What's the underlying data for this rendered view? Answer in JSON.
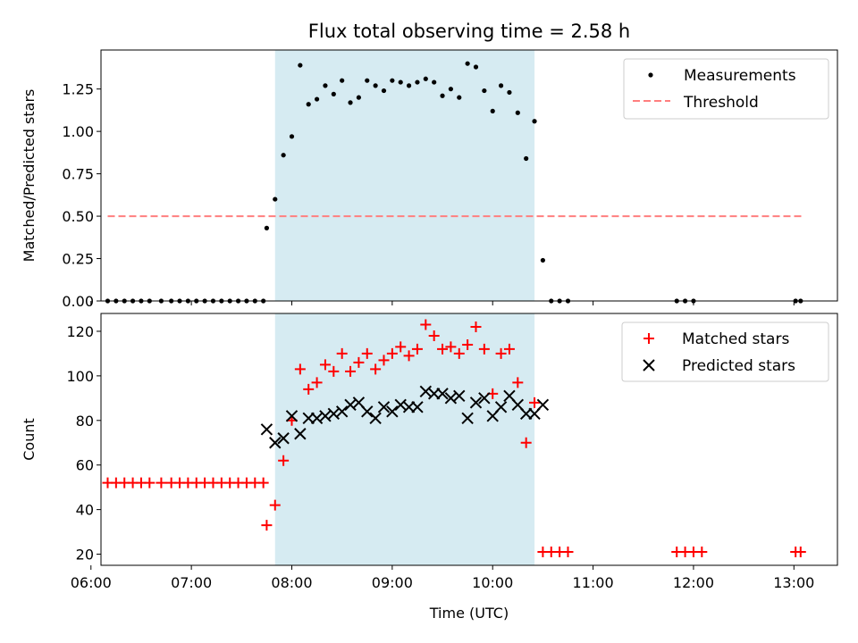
{
  "title": "Flux total observing time = 2.58 h",
  "chart_data": [
    {
      "type": "scatter",
      "ylabel": "Matched/Predicted stars",
      "xlim": [
        "06:06",
        "13:26"
      ],
      "ylim": [
        0,
        1.48
      ],
      "yticks": [
        "0.00",
        "0.25",
        "0.50",
        "0.75",
        "1.00",
        "1.25"
      ],
      "highlight_span": [
        "07:50",
        "10:25"
      ],
      "highlight_color": "#add8e6",
      "legend_position": "top-right",
      "series": [
        {
          "name": "Measurements",
          "marker": "dot",
          "color": "#000000",
          "points": [
            [
              "06:10",
              0
            ],
            [
              "06:15",
              0
            ],
            [
              "06:20",
              0
            ],
            [
              "06:25",
              0
            ],
            [
              "06:30",
              0
            ],
            [
              "06:35",
              0
            ],
            [
              "06:42",
              0
            ],
            [
              "06:48",
              0
            ],
            [
              "06:53",
              0
            ],
            [
              "06:58",
              0
            ],
            [
              "07:03",
              0
            ],
            [
              "07:08",
              0
            ],
            [
              "07:13",
              0
            ],
            [
              "07:18",
              0
            ],
            [
              "07:23",
              0
            ],
            [
              "07:28",
              0
            ],
            [
              "07:33",
              0
            ],
            [
              "07:38",
              0
            ],
            [
              "07:43",
              0
            ],
            [
              "07:45",
              0.43
            ],
            [
              "07:50",
              0.6
            ],
            [
              "07:55",
              0.86
            ],
            [
              "08:00",
              0.97
            ],
            [
              "08:05",
              1.39
            ],
            [
              "08:10",
              1.16
            ],
            [
              "08:15",
              1.19
            ],
            [
              "08:20",
              1.27
            ],
            [
              "08:25",
              1.22
            ],
            [
              "08:30",
              1.3
            ],
            [
              "08:35",
              1.17
            ],
            [
              "08:40",
              1.2
            ],
            [
              "08:45",
              1.3
            ],
            [
              "08:50",
              1.27
            ],
            [
              "08:55",
              1.24
            ],
            [
              "09:00",
              1.3
            ],
            [
              "09:05",
              1.29
            ],
            [
              "09:10",
              1.27
            ],
            [
              "09:15",
              1.29
            ],
            [
              "09:20",
              1.31
            ],
            [
              "09:25",
              1.29
            ],
            [
              "09:30",
              1.21
            ],
            [
              "09:35",
              1.25
            ],
            [
              "09:40",
              1.2
            ],
            [
              "09:45",
              1.4
            ],
            [
              "09:50",
              1.38
            ],
            [
              "09:55",
              1.24
            ],
            [
              "10:00",
              1.12
            ],
            [
              "10:05",
              1.27
            ],
            [
              "10:10",
              1.23
            ],
            [
              "10:15",
              1.11
            ],
            [
              "10:20",
              0.84
            ],
            [
              "10:25",
              1.06
            ],
            [
              "10:30",
              0.24
            ],
            [
              "10:35",
              0
            ],
            [
              "10:40",
              0
            ],
            [
              "10:45",
              0
            ],
            [
              "11:50",
              0
            ],
            [
              "11:55",
              0
            ],
            [
              "12:00",
              0
            ],
            [
              "13:01",
              0
            ],
            [
              "13:04",
              0
            ]
          ]
        },
        {
          "name": "Threshold",
          "type": "line",
          "dashed": true,
          "color": "#ff7f7f",
          "points": [
            [
              "06:10",
              0.5
            ],
            [
              "13:05",
              0.5
            ]
          ]
        }
      ]
    },
    {
      "type": "scatter",
      "xlabel": "Time (UTC)",
      "ylabel": "Count",
      "xlim": [
        "06:06",
        "13:26"
      ],
      "ylim": [
        15,
        128
      ],
      "yticks": [
        "20",
        "40",
        "60",
        "80",
        "100",
        "120"
      ],
      "xticks": [
        "06:00",
        "07:00",
        "08:00",
        "09:00",
        "10:00",
        "11:00",
        "12:00",
        "13:00"
      ],
      "highlight_span": [
        "07:50",
        "10:25"
      ],
      "highlight_color": "#add8e6",
      "legend_position": "top-right",
      "series": [
        {
          "name": "Matched stars",
          "marker": "plus",
          "color": "#ff0000",
          "points": [
            [
              "06:10",
              52
            ],
            [
              "06:15",
              52
            ],
            [
              "06:20",
              52
            ],
            [
              "06:25",
              52
            ],
            [
              "06:30",
              52
            ],
            [
              "06:35",
              52
            ],
            [
              "06:42",
              52
            ],
            [
              "06:48",
              52
            ],
            [
              "06:53",
              52
            ],
            [
              "06:58",
              52
            ],
            [
              "07:03",
              52
            ],
            [
              "07:08",
              52
            ],
            [
              "07:13",
              52
            ],
            [
              "07:18",
              52
            ],
            [
              "07:23",
              52
            ],
            [
              "07:28",
              52
            ],
            [
              "07:33",
              52
            ],
            [
              "07:38",
              52
            ],
            [
              "07:43",
              52
            ],
            [
              "07:45",
              33
            ],
            [
              "07:50",
              42
            ],
            [
              "07:55",
              62
            ],
            [
              "08:00",
              80
            ],
            [
              "08:05",
              103
            ],
            [
              "08:10",
              94
            ],
            [
              "08:15",
              97
            ],
            [
              "08:20",
              105
            ],
            [
              "08:25",
              102
            ],
            [
              "08:30",
              110
            ],
            [
              "08:35",
              102
            ],
            [
              "08:40",
              106
            ],
            [
              "08:45",
              110
            ],
            [
              "08:50",
              103
            ],
            [
              "08:55",
              107
            ],
            [
              "09:00",
              110
            ],
            [
              "09:05",
              113
            ],
            [
              "09:10",
              109
            ],
            [
              "09:15",
              112
            ],
            [
              "09:20",
              123
            ],
            [
              "09:25",
              118
            ],
            [
              "09:30",
              112
            ],
            [
              "09:35",
              113
            ],
            [
              "09:40",
              110
            ],
            [
              "09:45",
              114
            ],
            [
              "09:50",
              122
            ],
            [
              "09:55",
              112
            ],
            [
              "10:00",
              92
            ],
            [
              "10:05",
              110
            ],
            [
              "10:10",
              112
            ],
            [
              "10:15",
              97
            ],
            [
              "10:20",
              70
            ],
            [
              "10:25",
              88
            ],
            [
              "10:30",
              21
            ],
            [
              "10:35",
              21
            ],
            [
              "10:40",
              21
            ],
            [
              "10:45",
              21
            ],
            [
              "11:50",
              21
            ],
            [
              "11:55",
              21
            ],
            [
              "12:00",
              21
            ],
            [
              "12:05",
              21
            ],
            [
              "13:01",
              21
            ],
            [
              "13:04",
              21
            ]
          ]
        },
        {
          "name": "Predicted stars",
          "marker": "x",
          "color": "#000000",
          "points": [
            [
              "07:45",
              76
            ],
            [
              "07:50",
              70
            ],
            [
              "07:55",
              72
            ],
            [
              "08:00",
              82
            ],
            [
              "08:05",
              74
            ],
            [
              "08:10",
              81
            ],
            [
              "08:15",
              81
            ],
            [
              "08:20",
              82
            ],
            [
              "08:25",
              83
            ],
            [
              "08:30",
              84
            ],
            [
              "08:35",
              87
            ],
            [
              "08:40",
              88
            ],
            [
              "08:45",
              84
            ],
            [
              "08:50",
              81
            ],
            [
              "08:55",
              86
            ],
            [
              "09:00",
              84
            ],
            [
              "09:05",
              87
            ],
            [
              "09:10",
              86
            ],
            [
              "09:15",
              86
            ],
            [
              "09:20",
              93
            ],
            [
              "09:25",
              92
            ],
            [
              "09:30",
              92
            ],
            [
              "09:35",
              90
            ],
            [
              "09:40",
              91
            ],
            [
              "09:45",
              81
            ],
            [
              "09:50",
              88
            ],
            [
              "09:55",
              90
            ],
            [
              "10:00",
              82
            ],
            [
              "10:05",
              86
            ],
            [
              "10:10",
              91
            ],
            [
              "10:15",
              87
            ],
            [
              "10:20",
              83
            ],
            [
              "10:25",
              83
            ],
            [
              "10:30",
              87
            ]
          ]
        }
      ]
    }
  ]
}
